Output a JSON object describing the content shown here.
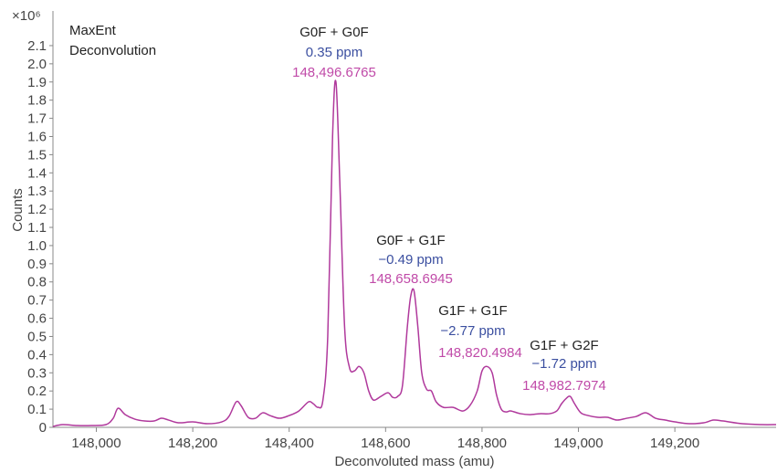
{
  "chart_data": {
    "type": "line",
    "title": "",
    "inset_text": [
      "MaxEnt",
      "Deconvolution"
    ],
    "xlabel": "Deconvoluted mass (amu)",
    "ylabel": "Counts",
    "y_multiplier": "×10⁶",
    "xlim": [
      147910,
      149410
    ],
    "ylim": [
      0,
      2.15
    ],
    "x_ticks": [
      148000,
      148200,
      148400,
      148600,
      148800,
      149000,
      149200
    ],
    "x_tick_labels": [
      "148,000",
      "148,200",
      "148,400",
      "148,600",
      "148,800",
      "149,000",
      "149,200"
    ],
    "y_ticks": [
      0,
      0.1,
      0.2,
      0.3,
      0.4,
      0.5,
      0.6,
      0.7,
      0.8,
      0.9,
      1.0,
      1.1,
      1.2,
      1.3,
      1.4,
      1.5,
      1.6,
      1.7,
      1.8,
      1.9,
      2.0,
      2.1
    ],
    "y_tick_labels": [
      "0",
      "0.1",
      "0.2",
      "0.3",
      "0.4",
      "0.5",
      "0.6",
      "0.7",
      "0.8",
      "0.9",
      "1.0",
      "1.1",
      "1.2",
      "1.3",
      "1.4",
      "1.5",
      "1.6",
      "1.7",
      "1.8",
      "1.9",
      "2.0",
      "2.1"
    ],
    "grid": false,
    "colors": {
      "line": "#b0399c",
      "ppm": "#3b4fa0",
      "mass": "#c04aa8",
      "axis": "#888888"
    },
    "series": [
      {
        "x": [
          147910,
          147930,
          147960,
          147990,
          148020,
          148035,
          148045,
          148060,
          148080,
          148100,
          148120,
          148135,
          148150,
          148170,
          148200,
          148230,
          148260,
          148275,
          148290,
          148300,
          148315,
          148330,
          148345,
          148360,
          148380,
          148400,
          148420,
          148440,
          148450,
          148460,
          148470,
          148480,
          148490,
          148497,
          148505,
          148515,
          148525,
          148535,
          148545,
          148555,
          148565,
          148575,
          148590,
          148605,
          148615,
          148625,
          148635,
          148645,
          148652,
          148659,
          148667,
          148675,
          148685,
          148695,
          148705,
          148720,
          148740,
          148760,
          148775,
          148790,
          148800,
          148810,
          148821,
          148830,
          148840,
          148850,
          148860,
          148880,
          148900,
          148920,
          148940,
          148955,
          148965,
          148975,
          148983,
          148992,
          149005,
          149020,
          149040,
          149060,
          149080,
          149100,
          149120,
          149140,
          149160,
          149180,
          149200,
          149230,
          149260,
          149280,
          149300,
          149340,
          149380,
          149410
        ],
        "y": [
          0.005,
          0.015,
          0.01,
          0.01,
          0.015,
          0.05,
          0.105,
          0.07,
          0.045,
          0.035,
          0.035,
          0.05,
          0.04,
          0.025,
          0.03,
          0.02,
          0.03,
          0.06,
          0.14,
          0.12,
          0.055,
          0.05,
          0.08,
          0.065,
          0.05,
          0.065,
          0.09,
          0.14,
          0.13,
          0.11,
          0.15,
          0.5,
          1.6,
          1.9,
          1.35,
          0.55,
          0.33,
          0.31,
          0.335,
          0.3,
          0.2,
          0.15,
          0.17,
          0.19,
          0.165,
          0.17,
          0.23,
          0.55,
          0.72,
          0.75,
          0.55,
          0.3,
          0.21,
          0.2,
          0.14,
          0.11,
          0.11,
          0.09,
          0.12,
          0.2,
          0.31,
          0.335,
          0.3,
          0.18,
          0.1,
          0.085,
          0.09,
          0.075,
          0.07,
          0.075,
          0.075,
          0.09,
          0.13,
          0.16,
          0.17,
          0.13,
          0.08,
          0.065,
          0.055,
          0.055,
          0.04,
          0.05,
          0.06,
          0.08,
          0.05,
          0.04,
          0.03,
          0.02,
          0.025,
          0.04,
          0.035,
          0.02,
          0.015,
          0.015
        ]
      }
    ],
    "annotations": [
      {
        "label": "G0F + G0F",
        "ppm": "0.35 ppm",
        "mass": "148,496.6765"
      },
      {
        "label": "G0F + G1F",
        "ppm": "−0.49 ppm",
        "mass": "148,658.6945"
      },
      {
        "label": "G1F + G1F",
        "ppm": "−2.77 ppm",
        "mass": "148,820.4984"
      },
      {
        "label": "G1F + G2F",
        "ppm": "−1.72 ppm",
        "mass": "148,982.7974"
      }
    ]
  }
}
